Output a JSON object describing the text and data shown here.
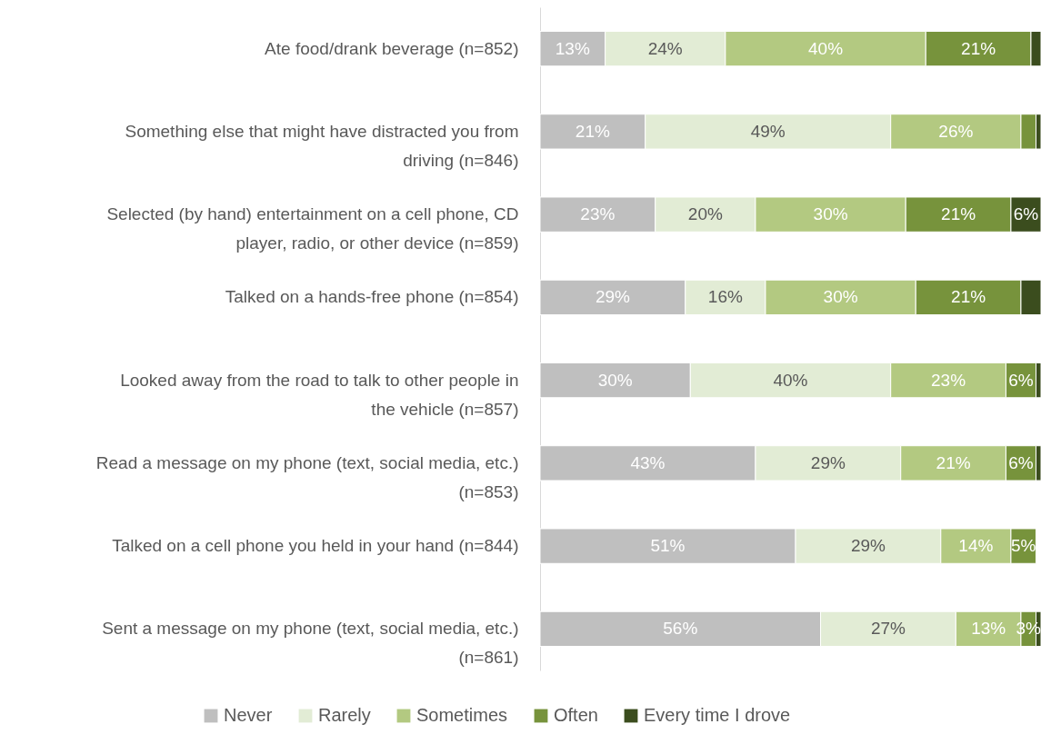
{
  "chart_data": {
    "type": "bar",
    "orientation": "horizontal",
    "stacked": true,
    "legend": "bottom",
    "tick_labels": "y",
    "xlim": [
      0,
      100
    ],
    "categories": [
      "Ate food/drank beverage (n=852)",
      "Something else that might have distracted you from driving  (n=846)",
      "Selected (by hand) entertainment on a cell phone, CD player, radio, or other device (n=859)",
      "Talked on a hands-free phone (n=854)",
      "Looked away from the road to talk to other people in the vehicle (n=857)",
      "Read a message on my phone (text, social media, etc.) (n=853)",
      "Talked on a cell phone you held in your hand (n=844)",
      "Sent a message on my phone (text, social media, etc.) (n=861)"
    ],
    "series": [
      {
        "name": "Never",
        "color": "#bfbfbf",
        "values": [
          13,
          21,
          23,
          29,
          30,
          43,
          51,
          56
        ],
        "value_labels": [
          "13%",
          "21%",
          "23%",
          "29%",
          "30%",
          "43%",
          "51%",
          "56%"
        ]
      },
      {
        "name": "Rarely",
        "color": "#e2ecd5",
        "values": [
          24,
          49,
          20,
          16,
          40,
          29,
          29,
          27
        ],
        "value_labels": [
          "24%",
          "49%",
          "20%",
          "16%",
          "40%",
          "29%",
          "29%",
          "27%"
        ]
      },
      {
        "name": "Sometimes",
        "color": "#b3c981",
        "values": [
          40,
          26,
          30,
          30,
          23,
          21,
          14,
          13
        ],
        "value_labels": [
          "40%",
          "26%",
          "30%",
          "30%",
          "23%",
          "21%",
          "14%",
          "13%"
        ]
      },
      {
        "name": "Often",
        "color": "#77933c",
        "values": [
          21,
          3,
          21,
          21,
          6,
          6,
          5,
          3
        ],
        "value_labels": [
          "21%",
          null,
          "21%",
          "21%",
          "6%",
          "6%",
          "5%",
          "3%"
        ]
      },
      {
        "name": "Every time I drove",
        "color": "#3b4d1e",
        "values": [
          2,
          1,
          6,
          4,
          1,
          1,
          null,
          1
        ],
        "value_labels": [
          null,
          null,
          "6%",
          null,
          null,
          null,
          null,
          null
        ]
      }
    ]
  }
}
